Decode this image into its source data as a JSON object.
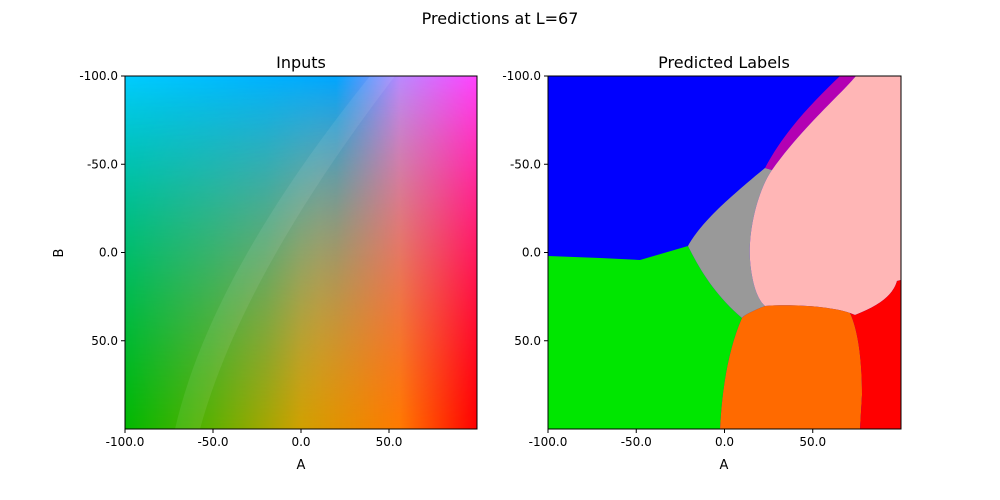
{
  "figure": {
    "title": "Predictions at L=67"
  },
  "chart_data": [
    {
      "type": "heatmap",
      "title": "Inputs",
      "xlabel": "A",
      "ylabel": "B",
      "xlim": [
        -100,
        100
      ],
      "ylim": [
        100,
        -100
      ],
      "x_ticks": [
        "-100.0",
        "-50.0",
        "0.0",
        "50.0"
      ],
      "y_ticks": [
        "-100.0",
        "-50.0",
        "0.0",
        "50.0"
      ],
      "x_tick_values": [
        -100,
        -50,
        0,
        50
      ],
      "y_tick_values": [
        -100,
        -50,
        0,
        50
      ],
      "description_colors": {
        "top_left": "#00ccff",
        "top_mid": "#00a6ff",
        "top_right": "#ff44ff",
        "mid_left": "#00b8b0",
        "center": "#b0a0a0",
        "mid_right": "#ff2080",
        "bottom_left": "#00b800",
        "bottom_mid": "#d0a000",
        "bottom_right": "#ff0000"
      }
    },
    {
      "type": "heatmap",
      "title": "Predicted Labels",
      "xlabel": "A",
      "ylabel": "",
      "xlim": [
        -100,
        100
      ],
      "ylim": [
        100,
        -100
      ],
      "x_ticks": [
        "-100.0",
        "-50.0",
        "0.0",
        "50.0"
      ],
      "y_ticks": [
        "-100.0",
        "-50.0",
        "0.0",
        "50.0"
      ],
      "x_tick_values": [
        -100,
        -50,
        0,
        50
      ],
      "y_tick_values": [
        -100,
        -50,
        0,
        50
      ],
      "regions": [
        {
          "color": "#0000ff",
          "label": "blue"
        },
        {
          "color": "#b300b3",
          "label": "purple"
        },
        {
          "color": "#ffb6b6",
          "label": "pink"
        },
        {
          "color": "#999999",
          "label": "gray"
        },
        {
          "color": "#00e600",
          "label": "green"
        },
        {
          "color": "#ff6a00",
          "label": "orange"
        },
        {
          "color": "#ff0000",
          "label": "red"
        }
      ]
    }
  ]
}
